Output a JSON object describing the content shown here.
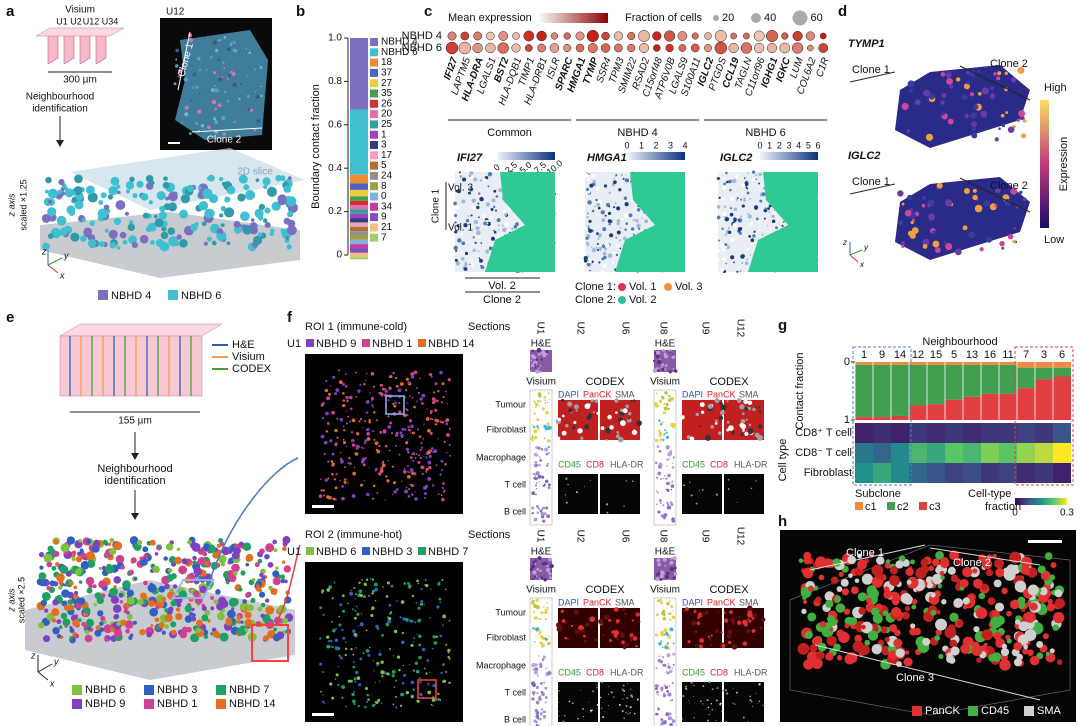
{
  "a": {
    "letter": "a",
    "visium": "Visium",
    "sections": [
      "U1",
      "U2",
      "U12",
      "U34"
    ],
    "scale": "300 µm",
    "step": [
      "Neighbourhood",
      "identification"
    ],
    "slice": "U12",
    "clones": [
      "Clone 1",
      "Clone 2"
    ],
    "slice_label": "2D slice",
    "zaxis": [
      "z axis",
      "scaled ×1.25"
    ],
    "axes": [
      "z",
      "y",
      "x"
    ],
    "legend": [
      {
        "name": "NBHD 4",
        "color": "#7b6fc0"
      },
      {
        "name": "NBHD 6",
        "color": "#3fc0d0"
      }
    ]
  },
  "b": {
    "letter": "b",
    "ylabel": "Boundary contact fraction",
    "ylim": [
      0,
      1
    ],
    "yticks": [
      0,
      0.2,
      0.4,
      0.6,
      0.8,
      {
        "value": 1,
        "label": "1.0"
      }
    ],
    "segments": [
      {
        "name": "NBHD 4",
        "value": 0.33,
        "color": "#7b6fc0"
      },
      {
        "name": "NBHD 6",
        "value": 0.3,
        "color": "#3fc0d0"
      },
      {
        "name": "18",
        "value": 0.04,
        "color": "#f08a30"
      },
      {
        "name": "37",
        "value": 0.03,
        "color": "#5060c0"
      },
      {
        "name": "27",
        "value": 0.03,
        "color": "#e8d040"
      },
      {
        "name": "35",
        "value": 0.02,
        "color": "#40a050"
      },
      {
        "name": "26",
        "value": 0.02,
        "color": "#d03030"
      },
      {
        "name": "20",
        "value": 0.02,
        "color": "#e070b0"
      },
      {
        "name": "25",
        "value": 0.02,
        "color": "#30a0a0"
      },
      {
        "name": "1",
        "value": 0.02,
        "color": "#a040c0"
      },
      {
        "name": "3",
        "value": 0.02,
        "color": "#304080"
      },
      {
        "name": "17",
        "value": 0.02,
        "color": "#f0a0c0"
      },
      {
        "name": "5",
        "value": 0.02,
        "color": "#b07030"
      },
      {
        "name": "24",
        "value": 0.02,
        "color": "#909090"
      },
      {
        "name": "8",
        "value": 0.02,
        "color": "#a0a040"
      },
      {
        "name": "0",
        "value": 0.02,
        "color": "#80b0e0"
      },
      {
        "name": "34",
        "value": 0.02,
        "color": "#c040a0"
      },
      {
        "name": "9",
        "value": 0.02,
        "color": "#8050c0"
      },
      {
        "name": "21",
        "value": 0.02,
        "color": "#f0c080"
      },
      {
        "name": "7",
        "value": 0.01,
        "color": "#a0d060"
      }
    ]
  },
  "c": {
    "letter": "c",
    "mean_label": "Mean expression",
    "fraction_label": "Fraction of cells",
    "sizes": [
      "20",
      "40",
      "60"
    ],
    "rows": [
      "NBHD 4",
      "NBHD 6"
    ],
    "genes": [
      {
        "name": "IFI27",
        "bold": true
      },
      {
        "name": "LAPTM5",
        "bold": false
      },
      {
        "name": "HLA-DRA",
        "bold": true
      },
      {
        "name": "LGALS1",
        "bold": false
      },
      {
        "name": "BST2",
        "bold": true
      },
      {
        "name": "HLA-DQB1",
        "bold": false
      },
      {
        "name": "TIMP1",
        "bold": false
      },
      {
        "name": "HLA-DRB1",
        "bold": false
      },
      {
        "name": "ISLR",
        "bold": false
      },
      {
        "name": "SPARC",
        "bold": true
      },
      {
        "name": "HMGA1",
        "bold": true
      },
      {
        "name": "TYMP",
        "bold": true
      },
      {
        "name": "SSR4",
        "bold": false
      },
      {
        "name": "TPM3",
        "bold": false
      },
      {
        "name": "SMIM22",
        "bold": false
      },
      {
        "name": "RSAD2",
        "bold": false
      },
      {
        "name": "C15orf48",
        "bold": false
      },
      {
        "name": "ATP6V0B",
        "bold": false
      },
      {
        "name": "LGALS9",
        "bold": false
      },
      {
        "name": "S100A11",
        "bold": false
      },
      {
        "name": "IGLC2",
        "bold": true
      },
      {
        "name": "PTGDS",
        "bold": false
      },
      {
        "name": "CCL19",
        "bold": true
      },
      {
        "name": "TAGLN",
        "bold": false
      },
      {
        "name": "C11orf96",
        "bold": false
      },
      {
        "name": "IGHG1",
        "bold": true
      },
      {
        "name": "IGKC",
        "bold": true
      },
      {
        "name": "LUM",
        "bold": false
      },
      {
        "name": "COL6A2",
        "bold": false
      },
      {
        "name": "C1R",
        "bold": false
      }
    ],
    "groups": [
      "Common",
      "NBHD 4",
      "NBHD 6"
    ],
    "maps": [
      {
        "gene": "IFI27",
        "ticks": [
          0,
          2.5,
          {
            "value": 5,
            "label": "5.0"
          },
          7.5,
          {
            "value": 10,
            "label": "10.0"
          }
        ]
      },
      {
        "gene": "HMGA1",
        "ticks": [
          0,
          1,
          2,
          3,
          4
        ]
      },
      {
        "gene": "IGLC2",
        "ticks": [
          0,
          1,
          2,
          3,
          4,
          5,
          6
        ]
      }
    ],
    "clone1": "Clone 1",
    "clone2": "Clone 2",
    "vols": [
      "Vol. 3",
      "Vol. 1",
      "Vol. 2"
    ],
    "legend": {
      "clone1": "Clone 1:",
      "clone2": "Clone 2:",
      "items": [
        {
          "name": "Vol. 1",
          "color": "#e03050"
        },
        {
          "name": "Vol. 3",
          "color": "#f09040"
        },
        {
          "name": "Vol. 2",
          "color": "#30c090"
        }
      ]
    }
  },
  "d": {
    "letter": "d",
    "maps": [
      {
        "gene": "TYMP1",
        "clones": [
          "Clone 1",
          "Clone 2"
        ]
      },
      {
        "gene": "IGLC2",
        "clones": [
          "Clone 1",
          "Clone 2"
        ]
      }
    ],
    "high": "High",
    "low": "Low",
    "label": "Expression",
    "axes": [
      "z",
      "y",
      "x"
    ]
  },
  "e": {
    "letter": "e",
    "modalities": [
      {
        "name": "H&E",
        "color": "#3060b0"
      },
      {
        "name": "Visium",
        "color": "#f0a050"
      },
      {
        "name": "CODEX",
        "color": "#40a040"
      }
    ],
    "scale": "155 µm",
    "step": [
      "Neighbourhood",
      "identification"
    ],
    "zaxis": [
      "z axis",
      "scaled ×2.5"
    ],
    "axes": [
      "z",
      "y",
      "x"
    ],
    "legend": [
      {
        "name": "NBHD 6",
        "color": "#80c040"
      },
      {
        "name": "NBHD 3",
        "color": "#3060c0"
      },
      {
        "name": "NBHD 7",
        "color": "#20a060"
      },
      {
        "name": "NBHD 9",
        "color": "#8040c0"
      },
      {
        "name": "NBHD 1",
        "color": "#d04090"
      },
      {
        "name": "NBHD 14",
        "color": "#e07020"
      }
    ]
  },
  "f": {
    "letter": "f",
    "rois": [
      {
        "title": "ROI 1 (immune-cold)",
        "section": "U1",
        "legend": [
          {
            "name": "NBHD 9",
            "color": "#8040c0"
          },
          {
            "name": "NBHD 1",
            "color": "#d04090"
          },
          {
            "name": "NBHD 14",
            "color": "#e07020"
          }
        ]
      },
      {
        "title": "ROI 2 (immune-hot)",
        "section": "U1",
        "legend": [
          {
            "name": "NBHD 6",
            "color": "#80c040"
          },
          {
            "name": "NBHD 3",
            "color": "#3060c0"
          },
          {
            "name": "NBHD 7",
            "color": "#20a060"
          }
        ]
      }
    ],
    "sections_label": "Sections",
    "sections": [
      "U1",
      "U2",
      "U6",
      "U8",
      "U9",
      "U12"
    ],
    "he": "H&E",
    "visium": "Visium",
    "codex": "CODEX",
    "markers1": [
      {
        "name": "DAPI",
        "color": "#3050c0"
      },
      {
        "name": "PanCK",
        "color": "#e02020"
      },
      {
        "name": "SMA",
        "color": "#555555"
      }
    ],
    "markers2": [
      {
        "name": "CD45",
        "color": "#30a030"
      },
      {
        "name": "CD8",
        "color": "#e02020"
      },
      {
        "name": "HLA-DR",
        "color": "#555555"
      }
    ],
    "cell_types": [
      "Tumour",
      "Fibroblast",
      "Macrophage",
      "T cell",
      "B cell"
    ]
  },
  "g": {
    "letter": "g",
    "title": "Neighbourhood",
    "columns": [
      "1",
      "9",
      "14",
      "12",
      "15",
      "5",
      "13",
      "16",
      "11",
      "7",
      "3",
      "6"
    ],
    "ylabel": "Contact fraction",
    "ylim": [
      0,
      1
    ],
    "yticks": [
      0,
      1
    ],
    "series": [
      {
        "name": "c1",
        "color": "#f08a40",
        "values": [
          0.05,
          0.05,
          0.05,
          0.05,
          0.05,
          0.05,
          0.05,
          0.05,
          0.05,
          0.1,
          0.1,
          0.1
        ]
      },
      {
        "name": "c2",
        "color": "#40a050",
        "values": [
          0.9,
          0.9,
          0.88,
          0.7,
          0.68,
          0.6,
          0.55,
          0.5,
          0.5,
          0.35,
          0.2,
          0.15
        ]
      },
      {
        "name": "c3",
        "color": "#e04040",
        "values": [
          0.05,
          0.05,
          0.07,
          0.25,
          0.27,
          0.35,
          0.4,
          0.45,
          0.45,
          0.55,
          0.7,
          0.75
        ]
      }
    ],
    "celltype_label": "Cell type",
    "rows": [
      {
        "name": "CD8⁺ T cell",
        "values": [
          0.03,
          0.04,
          0.03,
          0.05,
          0.04,
          0.05,
          0.04,
          0.05,
          0.05,
          0.06,
          0.05,
          0.08
        ]
      },
      {
        "name": "CD8⁻ T cell",
        "values": [
          0.12,
          0.1,
          0.14,
          0.2,
          0.18,
          0.22,
          0.2,
          0.24,
          0.22,
          0.25,
          0.27,
          0.3
        ]
      },
      {
        "name": "Fibroblast",
        "values": [
          0.15,
          0.18,
          0.14,
          0.1,
          0.08,
          0.06,
          0.07,
          0.05,
          0.06,
          0.04,
          0.05,
          0.03
        ]
      }
    ],
    "subclone_label": "Subclone",
    "cbar_label": [
      "Cell-type",
      "fraction"
    ],
    "cbar_lim": [
      0,
      0.3
    ],
    "cbar_ticks": [
      0,
      0.3
    ]
  },
  "h": {
    "letter": "h",
    "clones": [
      "Clone 1",
      "Clone 2",
      "Clone 3"
    ],
    "legend": [
      {
        "name": "PanCK",
        "color": "#e03030"
      },
      {
        "name": "CD45",
        "color": "#40b040"
      },
      {
        "name": "SMA",
        "color": "#d0d0d0"
      }
    ]
  }
}
